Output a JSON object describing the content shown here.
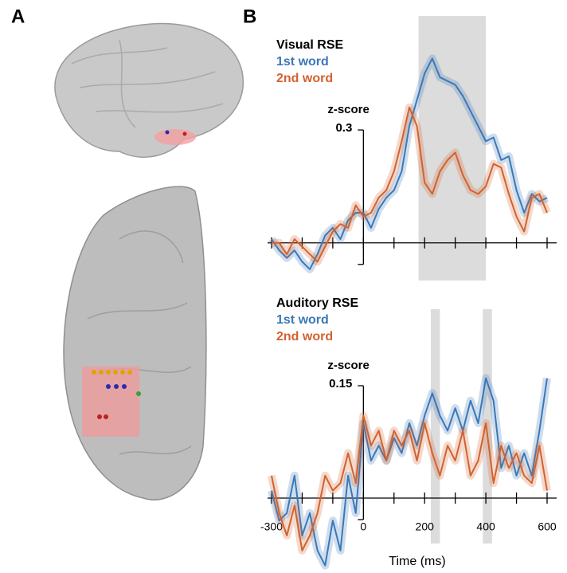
{
  "panels": [
    "A",
    "B"
  ],
  "chart_data": [
    {
      "type": "line",
      "title": "Visual RSE",
      "ylabel": "z-score",
      "x": [
        -300,
        -275,
        -250,
        -225,
        -200,
        -175,
        -150,
        -125,
        -100,
        -75,
        -50,
        -25,
        0,
        25,
        50,
        75,
        100,
        125,
        150,
        175,
        200,
        225,
        250,
        275,
        300,
        325,
        350,
        375,
        400,
        425,
        450,
        475,
        500,
        525,
        550,
        575,
        600
      ],
      "series": [
        {
          "name": "1st word",
          "color": "#3a78b8",
          "values": [
            0.01,
            -0.02,
            -0.04,
            -0.02,
            -0.05,
            -0.07,
            -0.03,
            0.02,
            0.04,
            0.01,
            0.06,
            0.08,
            0.08,
            0.04,
            0.09,
            0.12,
            0.14,
            0.19,
            0.31,
            0.38,
            0.45,
            0.49,
            0.44,
            0.43,
            0.42,
            0.39,
            0.35,
            0.31,
            0.27,
            0.28,
            0.22,
            0.23,
            0.14,
            0.08,
            0.13,
            0.11,
            0.12
          ]
        },
        {
          "name": "2nd word",
          "color": "#d2622e",
          "values": [
            0,
            0,
            -0.03,
            0.01,
            -0.01,
            -0.03,
            -0.05,
            -0.01,
            0.03,
            0.05,
            0.04,
            0.1,
            0.07,
            0.08,
            0.12,
            0.14,
            0.19,
            0.27,
            0.36,
            0.31,
            0.16,
            0.13,
            0.19,
            0.22,
            0.24,
            0.18,
            0.14,
            0.13,
            0.15,
            0.21,
            0.2,
            0.13,
            0.07,
            0.03,
            0.12,
            0.13,
            0.08
          ]
        }
      ],
      "xlim": [
        -300,
        600
      ],
      "ylim": [
        -0.1,
        0.55
      ],
      "yticks": [
        0.3
      ],
      "minor_xticks": [
        -300,
        -200,
        -100,
        0,
        100,
        200,
        300,
        400,
        500,
        600
      ],
      "shaded": [
        [
          180,
          400
        ]
      ]
    },
    {
      "type": "line",
      "title": "Auditory RSE",
      "ylabel": "z-score",
      "xlabel": "Time (ms)",
      "x": [
        -300,
        -275,
        -250,
        -225,
        -200,
        -175,
        -150,
        -125,
        -100,
        -75,
        -50,
        -25,
        0,
        25,
        50,
        75,
        100,
        125,
        150,
        175,
        200,
        225,
        250,
        275,
        300,
        325,
        350,
        375,
        400,
        425,
        450,
        475,
        500,
        525,
        550,
        575,
        600
      ],
      "series": [
        {
          "name": "1st word",
          "color": "#3a78b8",
          "values": [
            0.01,
            -0.03,
            -0.02,
            0.03,
            -0.05,
            -0.02,
            -0.07,
            -0.09,
            -0.03,
            -0.07,
            0.03,
            -0.02,
            0.1,
            0.05,
            0.07,
            0.05,
            0.08,
            0.06,
            0.1,
            0.07,
            0.11,
            0.14,
            0.11,
            0.09,
            0.12,
            0.09,
            0.13,
            0.1,
            0.16,
            0.13,
            0.04,
            0.07,
            0.03,
            0.06,
            0.03,
            0.09,
            0.16
          ]
        },
        {
          "name": "2nd word",
          "color": "#d2622e",
          "values": [
            0.03,
            -0.02,
            -0.05,
            -0.01,
            -0.07,
            -0.05,
            -0.02,
            0.03,
            0.01,
            0.02,
            0.06,
            0.02,
            0.11,
            0.07,
            0.09,
            0.05,
            0.09,
            0.07,
            0.09,
            0.05,
            0.1,
            0.06,
            0.03,
            0.07,
            0.05,
            0.09,
            0.03,
            0.05,
            0.1,
            0.02,
            0.07,
            0.04,
            0.06,
            0.03,
            0.02,
            0.07,
            0.01
          ]
        }
      ],
      "xlim": [
        -300,
        600
      ],
      "ylim": [
        -0.1,
        0.2
      ],
      "yticks": [
        0.15
      ],
      "xticks": [
        -300,
        0,
        200,
        400,
        600
      ],
      "minor_xticks": [
        -200,
        -100,
        100,
        300,
        500
      ],
      "shaded": [
        [
          220,
          250
        ],
        [
          390,
          420
        ]
      ]
    }
  ]
}
